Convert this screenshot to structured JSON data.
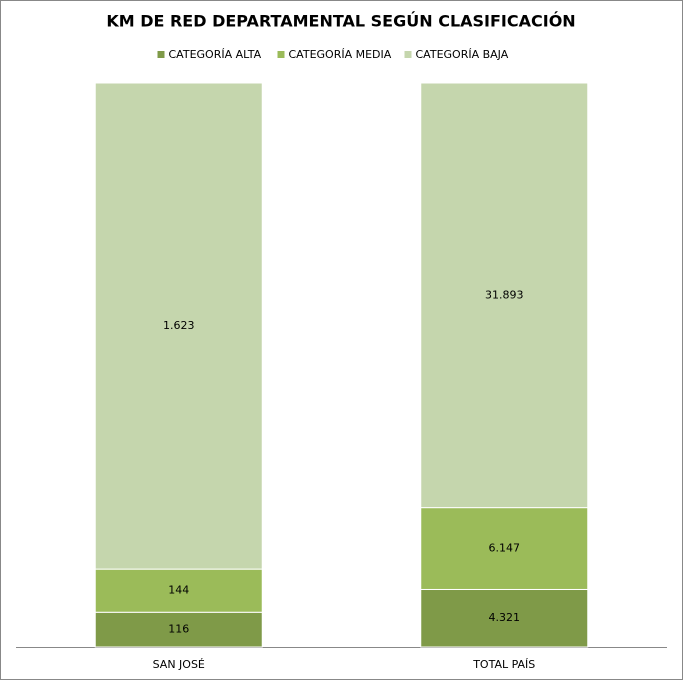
{
  "chart_data": {
    "type": "bar",
    "stacked": "percent",
    "title": "KM DE RED DEPARTAMENTAL SEGÚN CLASIFICACIÓN",
    "categories": [
      "SAN JOSÉ",
      "TOTAL PAÍS"
    ],
    "legend": "top",
    "series": [
      {
        "name": "CATEGORÍA ALTA",
        "color": "#7f9a48",
        "values": [
          116,
          4321
        ],
        "value_labels": [
          "116",
          "4.321"
        ]
      },
      {
        "name": "CATEGORÍA MEDIA",
        "color": "#9bbb59",
        "values": [
          144,
          6147
        ],
        "value_labels": [
          "144",
          "6.147"
        ]
      },
      {
        "name": "CATEGORÍA BAJA",
        "color": "#c5d6ad",
        "values": [
          1623,
          31893
        ],
        "value_labels": [
          "1.623",
          "31.893"
        ]
      }
    ]
  }
}
